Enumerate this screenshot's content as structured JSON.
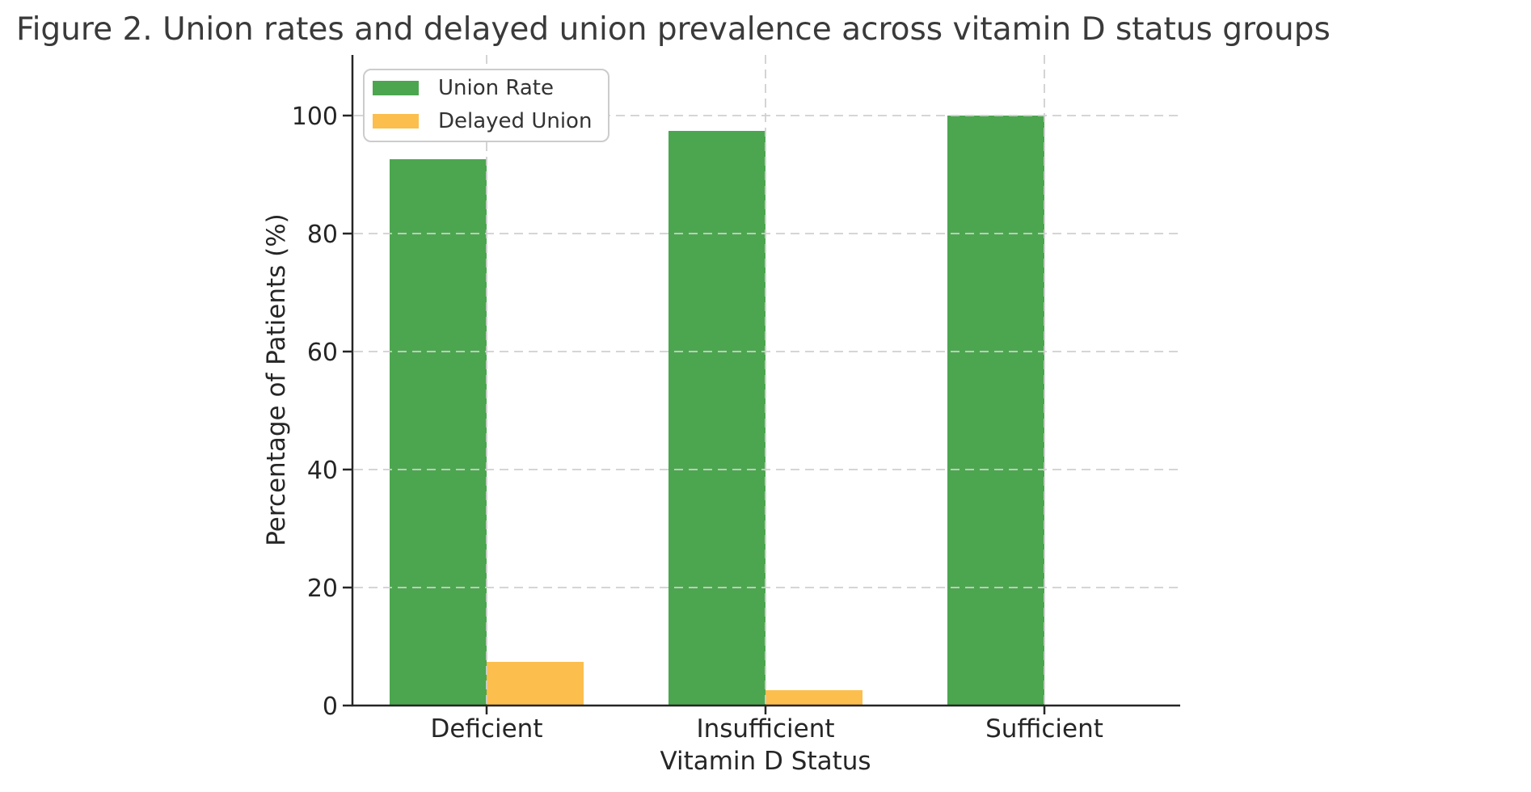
{
  "chart_data": {
    "type": "bar",
    "title": "Figure 2. Union rates and delayed union prevalence across vitamin D status groups",
    "xlabel": "Vitamin D Status",
    "ylabel": "Percentage of Patients (%)",
    "categories": [
      "Deficient",
      "Insufficient",
      "Sufficient"
    ],
    "series": [
      {
        "name": "Union Rate",
        "color": "#4CA64F",
        "values": [
          92.6,
          97.4,
          100.0
        ]
      },
      {
        "name": "Delayed Union",
        "color": "#FCBE4D",
        "values": [
          7.4,
          2.6,
          0.0
        ]
      }
    ],
    "yticks": [
      0,
      20,
      40,
      60,
      80,
      100
    ],
    "ylim": [
      0,
      110
    ],
    "grid": true,
    "grid_style": "dashed",
    "legend_position": "upper left",
    "legend_entries": [
      "Union Rate",
      "Delayed Union"
    ]
  },
  "style": {
    "bar_colors": {
      "union_rate": "#4CA64F",
      "delayed_union": "#FCBE4D"
    },
    "grid_color": "#cfcfcf",
    "spine_color": "#262626",
    "text_color": "#262626",
    "title_color": "#3a3a3a",
    "legend_border_color": "#cccccc",
    "background": "#ffffff"
  }
}
